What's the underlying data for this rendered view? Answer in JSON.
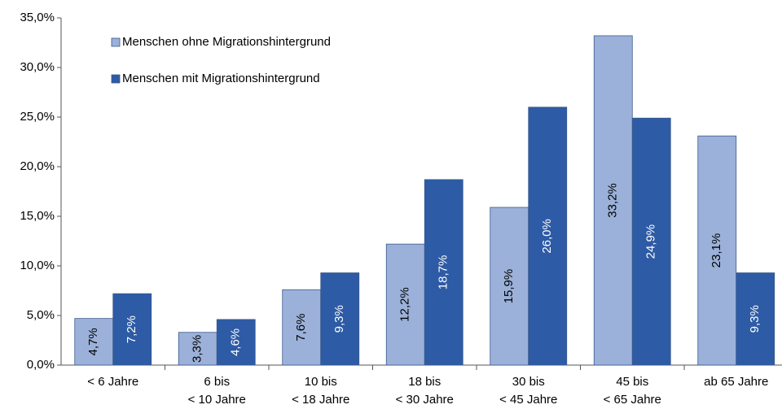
{
  "chart_data": {
    "type": "bar",
    "categories": [
      [
        "< 6 Jahre"
      ],
      [
        "6 bis",
        "< 10 Jahre"
      ],
      [
        "10 bis",
        "< 18 Jahre"
      ],
      [
        "18 bis",
        "< 30 Jahre"
      ],
      [
        "30 bis",
        "< 45 Jahre"
      ],
      [
        "45 bis",
        "< 65 Jahre"
      ],
      [
        "ab 65 Jahre"
      ]
    ],
    "series": [
      {
        "name": "Menschen ohne Migrationshintergrund",
        "color": "#9bb1d9",
        "values": [
          4.7,
          3.3,
          7.6,
          12.2,
          15.9,
          33.2,
          23.1
        ],
        "value_labels": [
          "4,7%",
          "3,3%",
          "7,6%",
          "12,2%",
          "15,9%",
          "33,2%",
          "23,1%"
        ]
      },
      {
        "name": "Menschen mit Migrationshintergrund",
        "color": "#2e5ba6",
        "values": [
          7.2,
          4.6,
          9.3,
          18.7,
          26.0,
          24.9,
          9.3
        ],
        "value_labels": [
          "7,2%",
          "4,6%",
          "9,3%",
          "18,7%",
          "26,0%",
          "24,9%",
          "9,3%"
        ]
      }
    ],
    "ylim": [
      0,
      35
    ],
    "yticks": [
      {
        "value": 0,
        "label": "0,0%"
      },
      {
        "value": 5,
        "label": "5,0%"
      },
      {
        "value": 10,
        "label": "10,0%"
      },
      {
        "value": 15,
        "label": "15,0%"
      },
      {
        "value": 20,
        "label": "20,0%"
      },
      {
        "value": 25,
        "label": "25,0%"
      },
      {
        "value": 30,
        "label": "30,0%"
      },
      {
        "value": 35,
        "label": "35,0%"
      }
    ],
    "grid": false,
    "legend": "top-left"
  }
}
